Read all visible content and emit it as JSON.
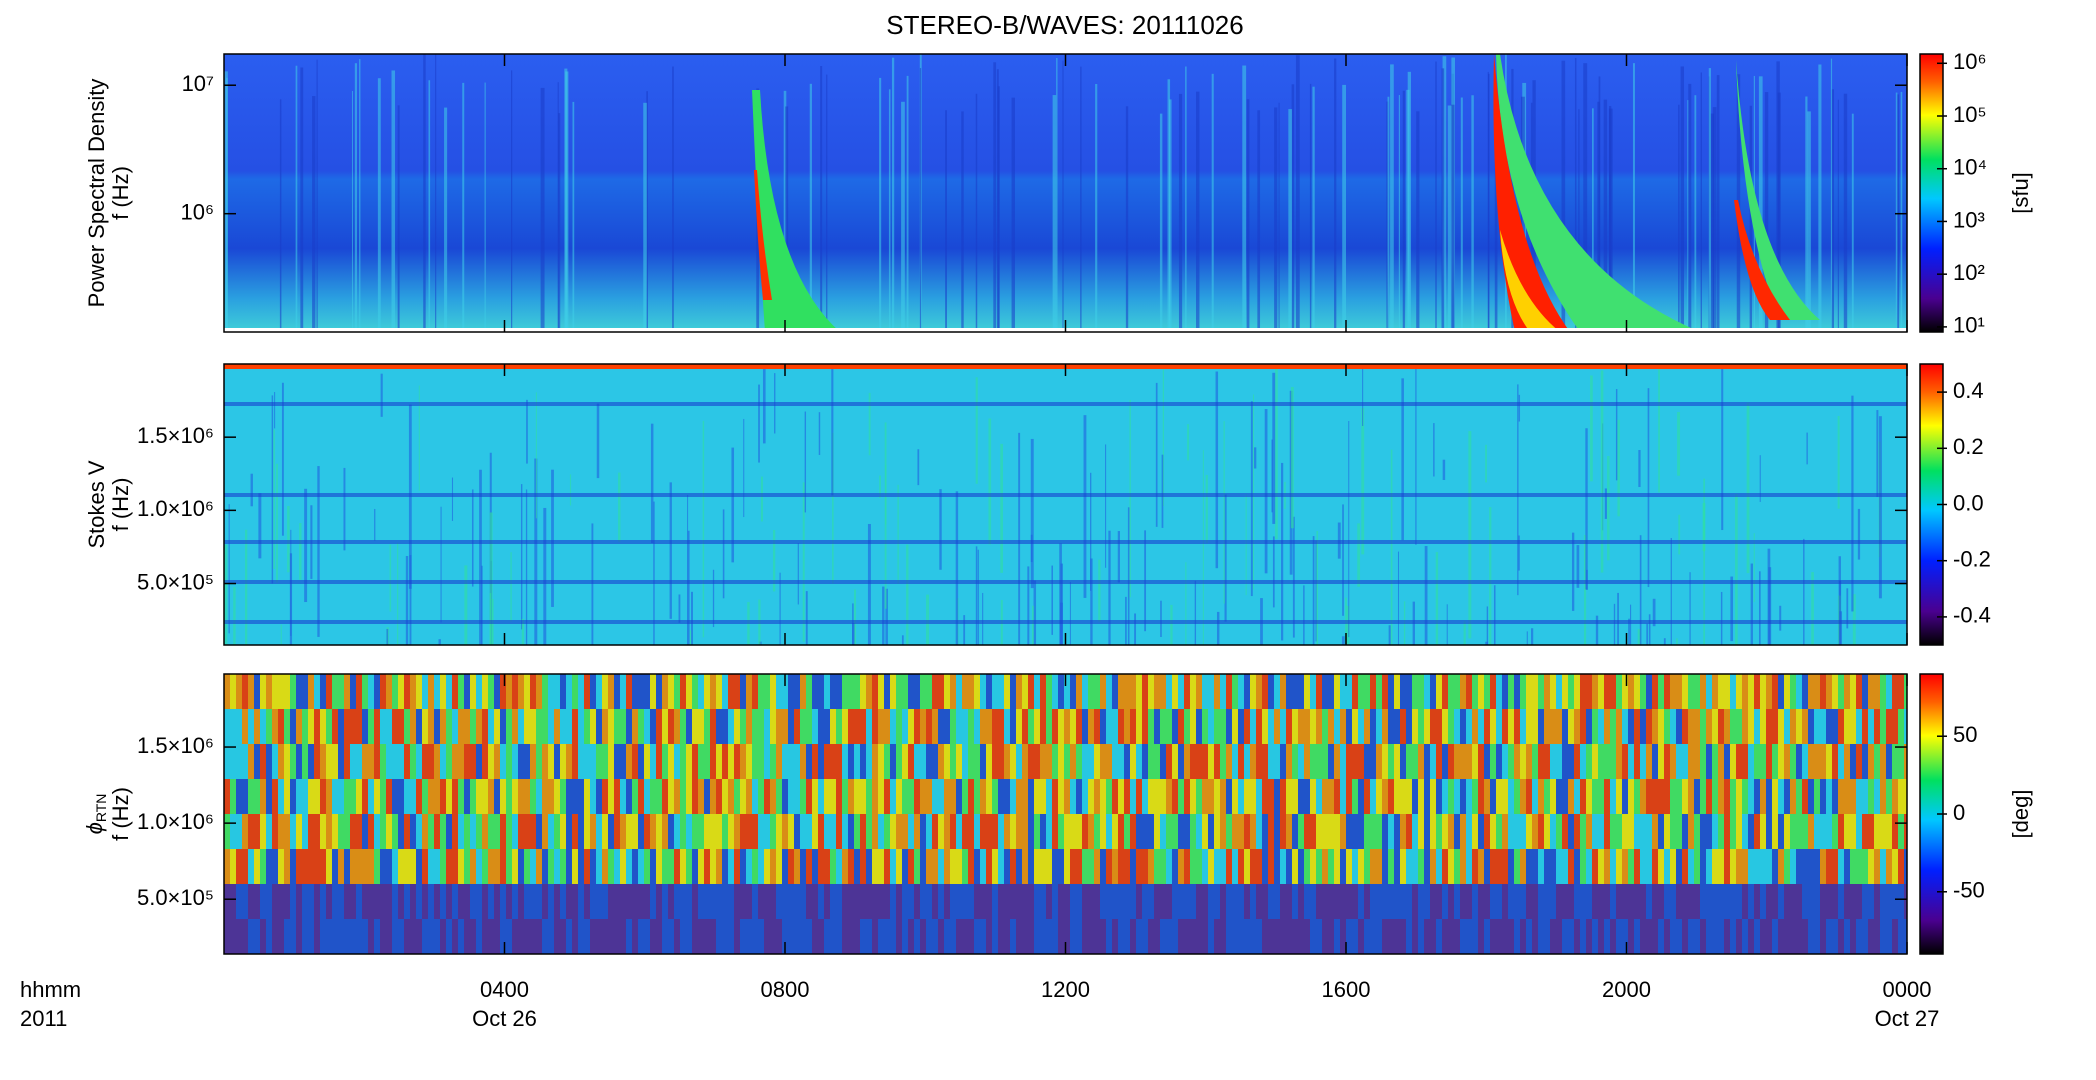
{
  "chart_data": [
    {
      "type": "spectrogram",
      "title": "STEREO-B/WAVES: 20111026",
      "ylabel": "Power Spectral Density",
      "ylabel_unit": "f (Hz)",
      "yscale": "log",
      "ylim": [
        120000,
        17500000
      ],
      "yticks": [
        {
          "value": 1000000,
          "label": "10⁶"
        },
        {
          "value": 10000000,
          "label": "10⁷"
        }
      ],
      "colorbar": {
        "label": "[sfu]",
        "scale": "log",
        "lim": [
          8,
          1500000
        ],
        "ticks": [
          {
            "value": 10,
            "label": "10¹"
          },
          {
            "value": 100,
            "label": "10²"
          },
          {
            "value": 1000,
            "label": "10³"
          },
          {
            "value": 10000,
            "label": "10⁴"
          },
          {
            "value": 100000,
            "label": "10⁵"
          },
          {
            "value": 1000000,
            "label": "10⁶"
          }
        ]
      },
      "xlim": [
        0,
        24
      ]
    },
    {
      "type": "spectrogram",
      "ylabel": "Stokes V",
      "ylabel_unit": "f (Hz)",
      "yscale": "linear",
      "ylim": [
        80000,
        2000000
      ],
      "yticks": [
        {
          "value": 500000,
          "label": "5.0×10⁵"
        },
        {
          "value": 1000000,
          "label": "1.0×10⁶"
        },
        {
          "value": 1500000,
          "label": "1.5×10⁶"
        }
      ],
      "colorbar": {
        "scale": "linear",
        "lim": [
          -0.5,
          0.5
        ],
        "ticks": [
          -0.4,
          -0.2,
          {
            "value": 0,
            "label": "0.0"
          },
          0.2,
          0.4
        ]
      },
      "xlim": [
        0,
        24
      ]
    },
    {
      "type": "spectrogram",
      "ylabel_symbol": "ϕ",
      "ylabel_subscript": "RTN",
      "ylabel_unit": "f (Hz)",
      "yscale": "linear",
      "ylim": [
        140000,
        1980000
      ],
      "yticks": [
        {
          "value": 500000,
          "label": "5.0×10⁵"
        },
        {
          "value": 1000000,
          "label": "1.0×10⁶"
        },
        {
          "value": 1500000,
          "label": "1.5×10⁶"
        }
      ],
      "colorbar": {
        "label": "[deg]",
        "scale": "linear",
        "lim": [
          -90,
          90
        ],
        "ticks": [
          -50,
          0,
          50
        ]
      },
      "xlim": [
        0,
        24
      ],
      "xlabel": "hhmm",
      "xlabel_year": "2011",
      "xticks": [
        {
          "value": 4,
          "label": "0400"
        },
        {
          "value": 8,
          "label": "0800"
        },
        {
          "value": 12,
          "label": "1200"
        },
        {
          "value": 16,
          "label": "1600"
        },
        {
          "value": 20,
          "label": "2000"
        },
        {
          "value": 24,
          "label": "0000"
        }
      ],
      "xdates": [
        {
          "value": 4,
          "label": "Oct 26"
        },
        {
          "value": 24,
          "label": "Oct 27"
        }
      ]
    }
  ]
}
